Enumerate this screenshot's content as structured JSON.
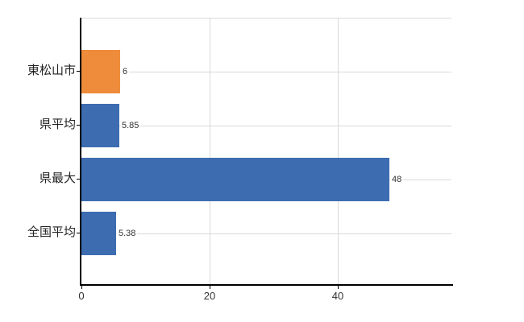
{
  "chart_data": {
    "type": "bar",
    "orientation": "horizontal",
    "title": "",
    "xlabel": "",
    "ylabel": "",
    "categories": [
      "東松山市",
      "県平均",
      "県最大",
      "全国平均"
    ],
    "values": [
      6,
      5.85,
      48,
      5.38
    ],
    "value_labels": [
      "6",
      "5.85",
      "48",
      "5.38"
    ],
    "bar_colors": [
      "#ee8c3c",
      "#3d6db0",
      "#3d6db0",
      "#3d6db0"
    ],
    "x_ticks": [
      0,
      20,
      40
    ],
    "x_tick_labels": [
      "0",
      "20",
      "40"
    ],
    "xlim": [
      0,
      57.7
    ],
    "grid": true,
    "legend": null
  },
  "colors": {
    "orange_bar": "#ee8c3c",
    "blue_bar": "#3d6db0",
    "gridline": "#d9d9d9",
    "axis": "#000000",
    "category_text": "#222222",
    "value_text": "#333333",
    "tick_text": "#333333",
    "background": "#ffffff"
  }
}
